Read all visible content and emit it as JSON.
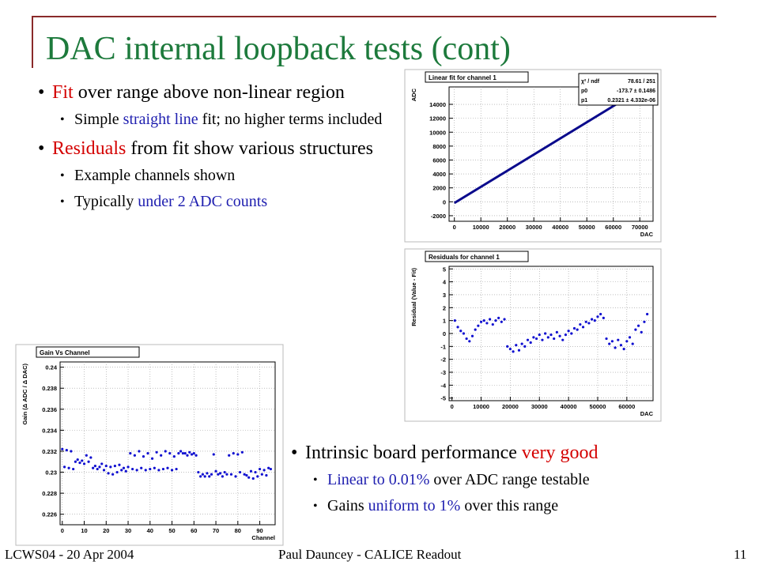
{
  "slide": {
    "title": "DAC internal loopback tests (cont)",
    "bullets_top": [
      {
        "level": 1,
        "parts": [
          {
            "text": "Fit",
            "accent": "#d40000"
          },
          {
            "text": " over range above non-linear region"
          }
        ]
      },
      {
        "level": 2,
        "parts": [
          {
            "text": "Simple "
          },
          {
            "text": "straight line",
            "accent": "#2020b0"
          },
          {
            "text": " fit; no higher terms included"
          }
        ]
      },
      {
        "level": 1,
        "parts": [
          {
            "text": "Residuals",
            "accent": "#d40000"
          },
          {
            "text": " from fit show various structures"
          }
        ]
      },
      {
        "level": 2,
        "parts": [
          {
            "text": "Example channels shown"
          }
        ]
      },
      {
        "level": 2,
        "parts": [
          {
            "text": "Typically "
          },
          {
            "text": "under 2 ADC counts",
            "accent": "#2020b0"
          }
        ]
      }
    ],
    "bullets_bottom": [
      {
        "level": 1,
        "parts": [
          {
            "text": "Intrinsic board performance "
          },
          {
            "text": "very good",
            "accent": "#d40000"
          }
        ]
      },
      {
        "level": 2,
        "parts": [
          {
            "text": "Linear to 0.01%",
            "accent": "#2020b0"
          },
          {
            "text": " over ADC range testable"
          }
        ]
      },
      {
        "level": 2,
        "parts": [
          {
            "text": "Gains "
          },
          {
            "text": "uniform to 1%",
            "accent": "#2020b0"
          },
          {
            "text": " over this range"
          }
        ]
      }
    ],
    "footer_left": "LCWS04 - 20 Apr 2004",
    "footer_center": "Paul Dauncey - CALICE Readout",
    "page_number": "11"
  },
  "chart_data": [
    {
      "type": "line",
      "title": "Linear fit for channel 1",
      "x_label": "DAC",
      "y_label": "ADC",
      "color": "#0a0a8c",
      "grid": true,
      "xlim": [
        -2000,
        75000
      ],
      "ylim": [
        -2800,
        16500
      ],
      "xticks": [
        0,
        10000,
        20000,
        30000,
        40000,
        50000,
        60000,
        70000
      ],
      "yticks": [
        -2000,
        0,
        2000,
        4000,
        6000,
        8000,
        10000,
        12000,
        14000
      ],
      "x": [
        0,
        64000
      ],
      "values": [
        -174,
        14681
      ],
      "stats": [
        {
          "label": "χ² / ndf",
          "value": "78.61 / 251"
        },
        {
          "label": "p0",
          "value": "-173.7 ± 0.1486"
        },
        {
          "label": "p1",
          "value": "0.2321 ± 4.332e-06"
        }
      ]
    },
    {
      "type": "scatter",
      "title": "Residuals for channel 1",
      "x_label": "DAC",
      "y_label": "Residual (Value - Fit)",
      "color": "#1010d0",
      "grid": true,
      "xlim": [
        -1000,
        69000
      ],
      "ylim": [
        -5.2,
        5.2
      ],
      "xticks": [
        0,
        10000,
        20000,
        30000,
        40000,
        50000,
        60000
      ],
      "yticks": [
        -5,
        -4,
        -3,
        -2,
        -1,
        0,
        1,
        2,
        3,
        4,
        5
      ],
      "x": [
        1000,
        2000,
        3000,
        4000,
        5000,
        6000,
        7000,
        8000,
        9000,
        10000,
        11000,
        12000,
        13000,
        14000,
        15000,
        16000,
        17000,
        18000,
        19000,
        20000,
        21000,
        22000,
        23000,
        24000,
        25000,
        26000,
        27000,
        28000,
        29000,
        30000,
        31000,
        32000,
        33000,
        34000,
        35000,
        36000,
        37000,
        38000,
        39000,
        40000,
        41000,
        42000,
        43000,
        44000,
        45000,
        46000,
        47000,
        48000,
        49000,
        50000,
        51000,
        52000,
        53000,
        54000,
        55000,
        56000,
        57000,
        58000,
        59000,
        60000,
        61000,
        62000,
        63000,
        64000,
        65000,
        66000,
        67000
      ],
      "values": [
        1.0,
        0.5,
        0.2,
        0.0,
        -0.4,
        -0.6,
        -0.2,
        0.3,
        0.6,
        0.9,
        1.0,
        0.8,
        1.1,
        0.7,
        1.0,
        1.2,
        0.9,
        1.1,
        -1.0,
        -1.2,
        -1.4,
        -0.9,
        -1.3,
        -0.8,
        -1.0,
        -0.5,
        -0.7,
        -0.3,
        -0.4,
        -0.1,
        -0.5,
        0.0,
        -0.3,
        -0.1,
        -0.4,
        0.1,
        -0.2,
        -0.5,
        -0.1,
        0.2,
        0.0,
        0.4,
        0.3,
        0.7,
        0.5,
        0.9,
        0.8,
        1.1,
        1.0,
        1.3,
        1.5,
        1.2,
        -0.4,
        -0.8,
        -0.6,
        -1.1,
        -0.5,
        -0.9,
        -1.2,
        -0.6,
        -0.3,
        -0.8,
        0.3,
        0.6,
        0.1,
        0.9,
        1.5
      ]
    },
    {
      "type": "scatter",
      "title": "Gain Vs Channel",
      "x_label": "Channel",
      "y_label": "Gain (Δ ADC / Δ DAC)",
      "color": "#1010d0",
      "grid": true,
      "xlim": [
        -1,
        97
      ],
      "ylim": [
        0.225,
        0.2405
      ],
      "xticks": [
        0,
        10,
        20,
        30,
        40,
        50,
        60,
        70,
        80,
        90
      ],
      "yticks": [
        0.226,
        0.228,
        0.23,
        0.232,
        0.234,
        0.236,
        0.238,
        0.24
      ],
      "x": [
        0,
        1,
        2,
        3,
        4,
        5,
        6,
        7,
        8,
        9,
        10,
        11,
        12,
        13,
        14,
        15,
        16,
        17,
        18,
        19,
        20,
        21,
        22,
        23,
        24,
        25,
        26,
        27,
        28,
        29,
        30,
        31,
        32,
        33,
        34,
        35,
        36,
        37,
        38,
        39,
        40,
        41,
        42,
        43,
        44,
        45,
        46,
        47,
        48,
        49,
        50,
        51,
        52,
        53,
        54,
        55,
        56,
        57,
        58,
        59,
        60,
        61,
        62,
        63,
        64,
        65,
        66,
        67,
        68,
        69,
        70,
        71,
        72,
        73,
        74,
        75,
        76,
        77,
        78,
        79,
        80,
        81,
        82,
        83,
        84,
        85,
        86,
        87,
        88,
        89,
        90,
        91,
        92,
        93,
        94,
        95
      ],
      "values": [
        0.2322,
        0.2305,
        0.2321,
        0.2304,
        0.232,
        0.2303,
        0.231,
        0.2312,
        0.2309,
        0.2311,
        0.2308,
        0.2316,
        0.231,
        0.2314,
        0.2304,
        0.2306,
        0.2303,
        0.2305,
        0.2308,
        0.2302,
        0.2306,
        0.2299,
        0.2305,
        0.2298,
        0.2306,
        0.23,
        0.2307,
        0.2302,
        0.2304,
        0.2301,
        0.2305,
        0.2318,
        0.2303,
        0.2316,
        0.2302,
        0.232,
        0.2304,
        0.2315,
        0.2302,
        0.2318,
        0.2303,
        0.2313,
        0.2304,
        0.2319,
        0.2302,
        0.2316,
        0.2303,
        0.232,
        0.2304,
        0.2318,
        0.2302,
        0.2315,
        0.2303,
        0.2318,
        0.232,
        0.2318,
        0.2318,
        0.2316,
        0.2319,
        0.2317,
        0.2318,
        0.2316,
        0.23,
        0.2296,
        0.2298,
        0.2296,
        0.2299,
        0.2296,
        0.2298,
        0.2317,
        0.2301,
        0.2298,
        0.2299,
        0.2296,
        0.23,
        0.2298,
        0.2316,
        0.2298,
        0.2318,
        0.2296,
        0.2317,
        0.23,
        0.2319,
        0.2298,
        0.2297,
        0.2295,
        0.2301,
        0.2294,
        0.23,
        0.2296,
        0.2303,
        0.2298,
        0.2302,
        0.2297,
        0.2304,
        0.2303
      ]
    }
  ]
}
